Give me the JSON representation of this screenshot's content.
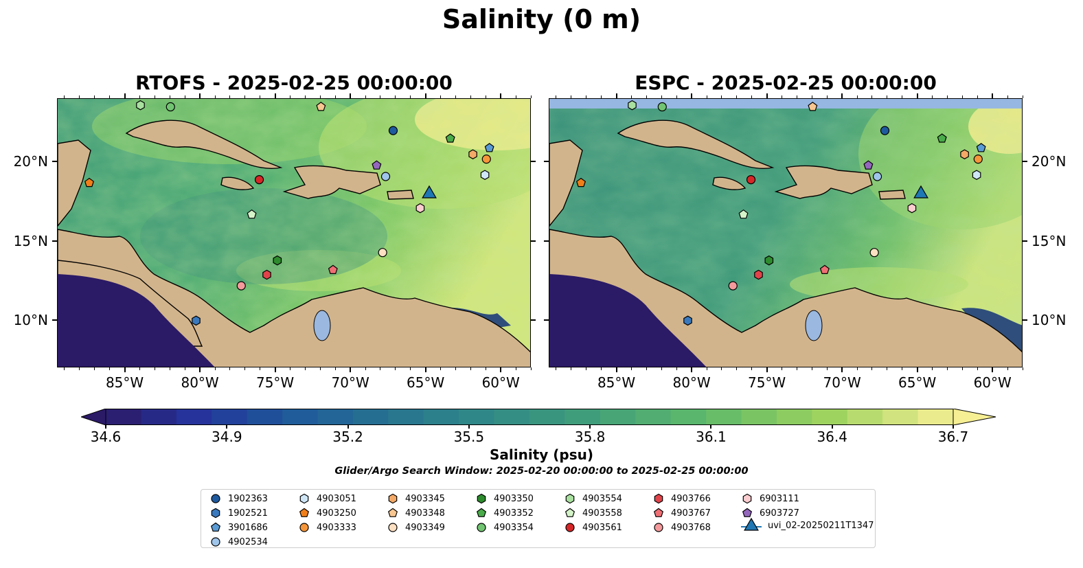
{
  "figure": {
    "title": "Salinity (0 m)",
    "panels": [
      {
        "title": "RTOFS - 2025-02-25 00:00:00",
        "model": "RTOFS"
      },
      {
        "title": "ESPC - 2025-02-25 00:00:00",
        "model": "ESPC"
      }
    ],
    "lon_ticks": [
      "85°W",
      "80°W",
      "75°W",
      "70°W",
      "65°W",
      "60°W"
    ],
    "lat_ticks": [
      "20°N",
      "15°N",
      "10°N"
    ],
    "extent": {
      "lon_min": -89.5,
      "lon_max": -58.0,
      "lat_min": 7.0,
      "lat_max": 24.0
    }
  },
  "colorbar": {
    "label": "Salinity (psu)",
    "ticks": [
      "34.6",
      "34.9",
      "35.2",
      "35.5",
      "35.8",
      "36.1",
      "36.4",
      "36.7"
    ],
    "range": [
      34.6,
      36.7
    ],
    "levels": 24,
    "extend": "both",
    "colormap": "summer-like: dark navy to teal to green to pale yellow"
  },
  "search_window": "Glider/Argo Search Window: 2025-02-20 00:00:00 to 2025-02-25 00:00:00",
  "colors": {
    "land": "#d2b48c",
    "low_salinity": "#2b1a66",
    "high_salinity": "#fdf09a",
    "lakes_rivers": "#9ab8e0"
  },
  "legend": [
    {
      "id": "1902363",
      "marker": "circle",
      "color": "#1f5a9e",
      "lon": -67.2,
      "lat": 22.0
    },
    {
      "id": "1902521",
      "marker": "hexagon",
      "color": "#3a79bd",
      "lon": -80.3,
      "lat": 10.0
    },
    {
      "id": "3901686",
      "marker": "pentagon",
      "color": "#5b9bd5",
      "lon": -60.8,
      "lat": 20.9
    },
    {
      "id": "4902534",
      "marker": "circle",
      "color": "#9fc5ea",
      "lon": -67.7,
      "lat": 19.1
    },
    {
      "id": "4903051",
      "marker": "hexagon",
      "color": "#cfe6f7",
      "lon": -61.1,
      "lat": 19.2
    },
    {
      "id": "4903250",
      "marker": "pentagon",
      "color": "#f07f1a",
      "lon": -87.4,
      "lat": 18.7
    },
    {
      "id": "4903333",
      "marker": "circle",
      "color": "#f5963a",
      "lon": -61.0,
      "lat": 20.2
    },
    {
      "id": "4903345",
      "marker": "hexagon",
      "color": "#f3a968",
      "lon": -61.9,
      "lat": 20.5
    },
    {
      "id": "4903348",
      "marker": "pentagon",
      "color": "#f8c690",
      "lon": -72.0,
      "lat": 23.5
    },
    {
      "id": "4903349",
      "marker": "circle",
      "color": "#fde0c2",
      "lon": -67.9,
      "lat": 14.3
    },
    {
      "id": "4903350",
      "marker": "hexagon",
      "color": "#2e8b2e",
      "lon": -74.9,
      "lat": 13.8
    },
    {
      "id": "4903352",
      "marker": "pentagon",
      "color": "#4aab4a",
      "lon": -63.4,
      "lat": 21.5
    },
    {
      "id": "4903354",
      "marker": "circle",
      "color": "#72c472",
      "lon": -82.0,
      "lat": 23.5
    },
    {
      "id": "4903554",
      "marker": "hexagon",
      "color": "#a9e0a0",
      "lon": -84.0,
      "lat": 23.6
    },
    {
      "id": "4903558",
      "marker": "pentagon",
      "color": "#d4f3c8",
      "lon": -76.6,
      "lat": 16.7
    },
    {
      "id": "4903561",
      "marker": "circle",
      "color": "#d62728",
      "lon": -76.1,
      "lat": 18.9
    },
    {
      "id": "4903766",
      "marker": "hexagon",
      "color": "#e0444a",
      "lon": -75.6,
      "lat": 12.9
    },
    {
      "id": "4903767",
      "marker": "pentagon",
      "color": "#ee6f74",
      "lon": -71.2,
      "lat": 13.2
    },
    {
      "id": "4903768",
      "marker": "circle",
      "color": "#f49a9c",
      "lon": -77.3,
      "lat": 12.2
    },
    {
      "id": "6903111",
      "marker": "hexagon",
      "color": "#fbcdd0",
      "lon": -65.4,
      "lat": 17.1
    },
    {
      "id": "6903727",
      "marker": "pentagon",
      "color": "#9467bd",
      "lon": -68.3,
      "lat": 19.8
    },
    {
      "id": "uvi_02-20250211T1347",
      "marker": "triangle",
      "color": "#1f77b4",
      "lon": -64.8,
      "lat": 18.1
    }
  ]
}
